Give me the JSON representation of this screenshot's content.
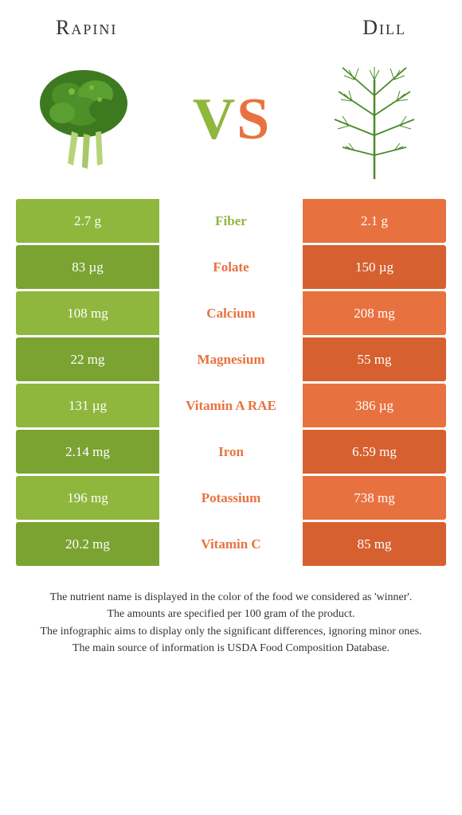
{
  "header": {
    "left_title": "Rapini",
    "right_title": "Dill"
  },
  "colors": {
    "left": "#8fb73e",
    "right": "#e8723f",
    "left_dark": "#7aa332",
    "right_dark": "#d6602f",
    "rapini_green": "#3d7a1f",
    "dill_green": "#4a8a2a"
  },
  "vs": {
    "v": "V",
    "s": "S"
  },
  "rows": [
    {
      "left": "2.7 g",
      "label": "Fiber",
      "right": "2.1 g",
      "winner": "left"
    },
    {
      "left": "83 µg",
      "label": "Folate",
      "right": "150 µg",
      "winner": "right"
    },
    {
      "left": "108 mg",
      "label": "Calcium",
      "right": "208 mg",
      "winner": "right"
    },
    {
      "left": "22 mg",
      "label": "Magnesium",
      "right": "55 mg",
      "winner": "right"
    },
    {
      "left": "131 µg",
      "label": "Vitamin A RAE",
      "right": "386 µg",
      "winner": "right"
    },
    {
      "left": "2.14 mg",
      "label": "Iron",
      "right": "6.59 mg",
      "winner": "right"
    },
    {
      "left": "196 mg",
      "label": "Potassium",
      "right": "738 mg",
      "winner": "right"
    },
    {
      "left": "20.2 mg",
      "label": "Vitamin C",
      "right": "85 mg",
      "winner": "right"
    }
  ],
  "footer": {
    "line1": "The nutrient name is displayed in the color of the food we considered as 'winner'.",
    "line2": "The amounts are specified per 100 gram of the product.",
    "line3": "The infographic aims to display only the significant differences, ignoring minor ones.",
    "line4": "The main source of information is USDA Food Composition Database."
  }
}
